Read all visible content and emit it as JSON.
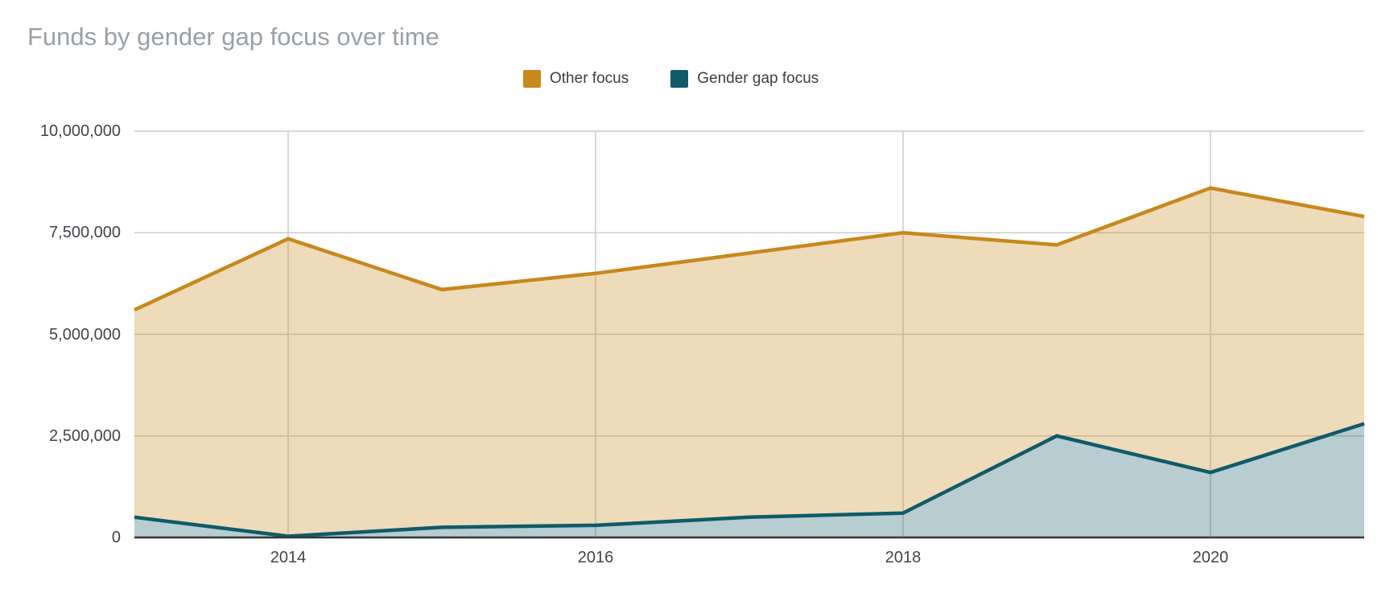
{
  "chart_data": {
    "type": "area",
    "stacked": true,
    "title": "Funds by gender gap focus over time",
    "xlabel": "",
    "ylabel": "",
    "x": [
      2013,
      2014,
      2015,
      2016,
      2017,
      2018,
      2019,
      2020,
      2021
    ],
    "x_ticks": [
      2014,
      2016,
      2018,
      2020
    ],
    "x_tick_labels": [
      "2014",
      "2016",
      "2018",
      "2020"
    ],
    "y_ticks": [
      0,
      2500000,
      5000000,
      7500000,
      10000000
    ],
    "y_tick_labels": [
      "0",
      "2,500,000",
      "5,000,000",
      "7,500,000",
      "10,000,000"
    ],
    "ylim": [
      0,
      10000000
    ],
    "xlim": [
      2013,
      2021
    ],
    "grid": true,
    "legend_position": "top",
    "series": [
      {
        "name": "Other focus",
        "color": "#C8881B",
        "stack_position": "top",
        "values": [
          5100000,
          7320000,
          5850000,
          6200000,
          6500000,
          6900000,
          4700000,
          7000000,
          5100000
        ]
      },
      {
        "name": "Gender gap focus",
        "color": "#0F5B68",
        "stack_position": "bottom",
        "values": [
          500000,
          30000,
          250000,
          300000,
          500000,
          600000,
          2500000,
          1600000,
          2800000
        ]
      }
    ],
    "stacked_totals": [
      5600000,
      7350000,
      6100000,
      6500000,
      7000000,
      7500000,
      7200000,
      8600000,
      7900000
    ]
  },
  "styles": {
    "background": "#FFFFFF",
    "title_color": "#9AA0A6",
    "axis_label_color": "#40454A",
    "legend_label_color": "#3C4043",
    "gridline_color": "#CCCCCC",
    "axis_line_color": "#333638",
    "fill_opacity": 0.3
  }
}
